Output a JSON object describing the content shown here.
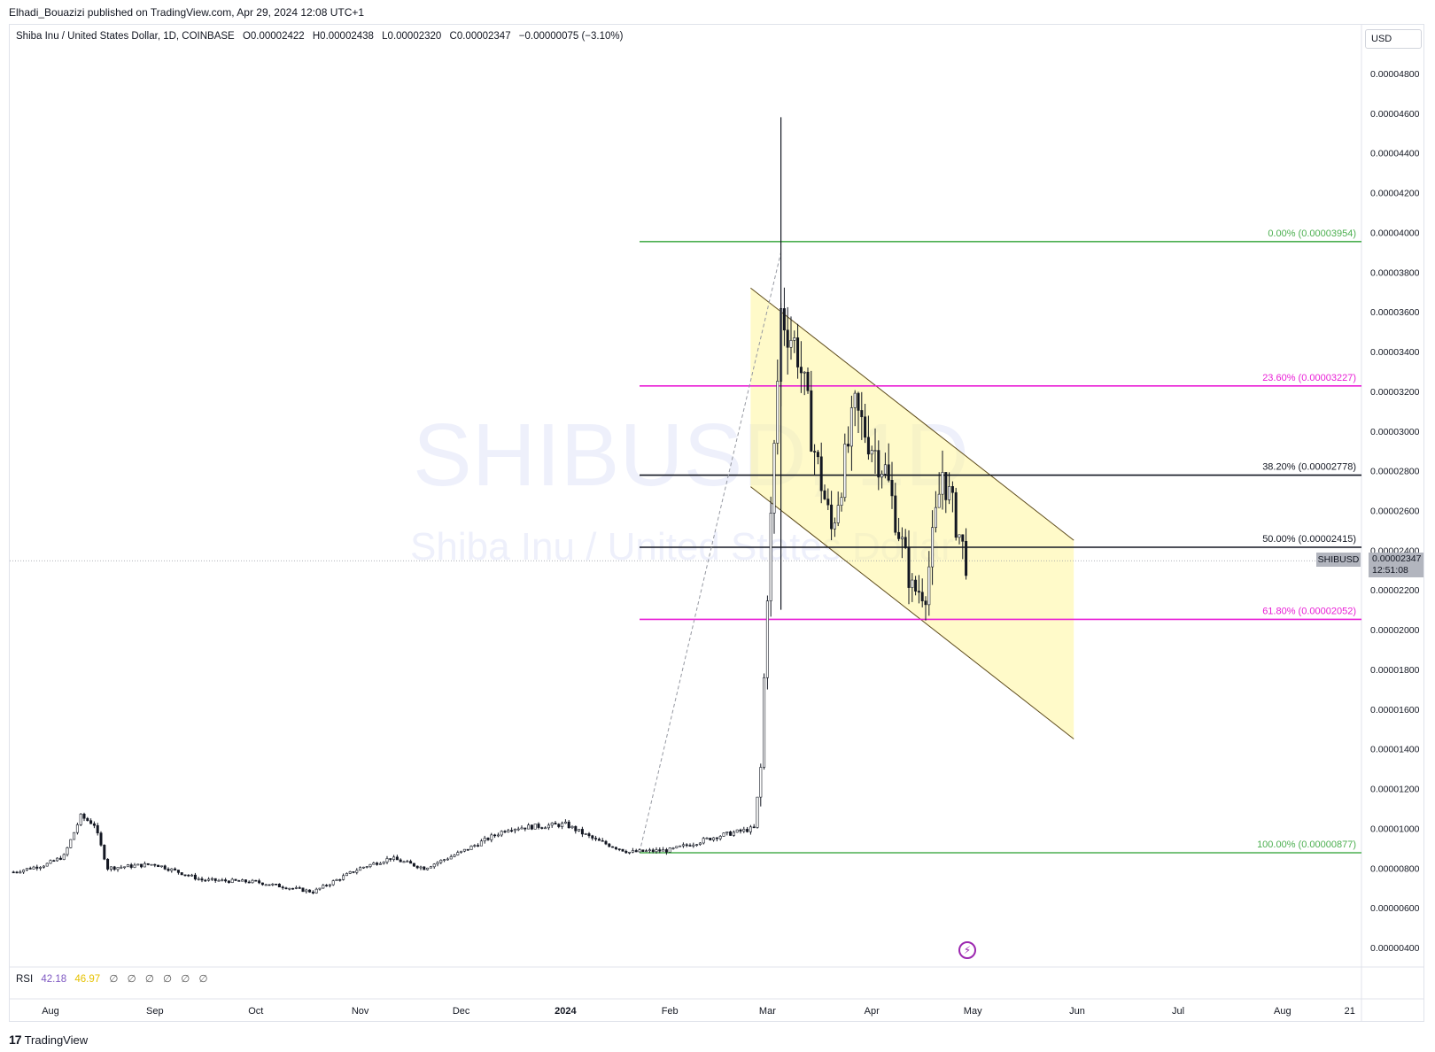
{
  "header": {
    "published_by": "Elhadi_Bouazizi published on TradingView.com, Apr 29, 2024 12:08 UTC+1"
  },
  "legend": {
    "title": "Shiba Inu / United States Dollar, 1D, COINBASE",
    "o_label": "O",
    "o_value": "0.00002422",
    "h_label": "H",
    "h_value": "0.00002438",
    "l_label": "L",
    "l_value": "0.00002320",
    "c_label": "C",
    "c_value": "0.00002347",
    "change": "−0.00000075 (−3.10%)"
  },
  "watermark": {
    "symbol": "SHIBUSD",
    "interval": "1D",
    "name": "Shiba Inu / United States Dollar"
  },
  "currency_button": "USD",
  "price_tag": {
    "symbol": "SHIBUSD",
    "price": "0.00002347",
    "countdown": "12:51:08"
  },
  "rsi": {
    "label": "RSI",
    "value1": "42.18",
    "value2": "46.97",
    "na_marks": [
      "∅",
      "∅",
      "∅",
      "∅",
      "∅",
      "∅"
    ]
  },
  "branding": {
    "logo_text": "TradingView",
    "logo_mark": "17"
  },
  "colors": {
    "candle": "#131722",
    "fib_green": "#4caf50",
    "fib_magenta": "#e91ed6",
    "fib_black": "#131722",
    "channel_fill": "#fff59d",
    "dashed": "#9598a1"
  },
  "chart_data": {
    "type": "candlestick",
    "symbol": "SHIBUSD",
    "y_axis": {
      "ticks": [
        "0.00004800",
        "0.00004600",
        "0.00004400",
        "0.00004200",
        "0.00004000",
        "0.00003800",
        "0.00003600",
        "0.00003400",
        "0.00003200",
        "0.00003000",
        "0.00002800",
        "0.00002600",
        "0.00002400",
        "0.00002200",
        "0.00002000",
        "0.00001800",
        "0.00001600",
        "0.00001400",
        "0.00001200",
        "0.00001000",
        "0.00000800",
        "0.00000600",
        "0.00000400"
      ],
      "tick_values": [
        4.8e-05,
        4.6e-05,
        4.4e-05,
        4.2e-05,
        4e-05,
        3.8e-05,
        3.6e-05,
        3.4e-05,
        3.2e-05,
        3e-05,
        2.8e-05,
        2.6e-05,
        2.4e-05,
        2.2e-05,
        2e-05,
        1.8e-05,
        1.6e-05,
        1.4e-05,
        1.2e-05,
        1e-05,
        8e-06,
        6e-06,
        4e-06
      ]
    },
    "x_axis": {
      "ticks": [
        "Aug",
        "Sep",
        "Oct",
        "Nov",
        "Dec",
        "2024",
        "Feb",
        "Mar",
        "Apr",
        "May",
        "Jun",
        "Jul",
        "Aug",
        "21"
      ],
      "tick_dates": [
        "2023-08-01",
        "2023-09-01",
        "2023-10-01",
        "2023-11-01",
        "2023-12-01",
        "2024-01-01",
        "2024-02-01",
        "2024-03-01",
        "2024-04-01",
        "2024-05-01",
        "2024-06-01",
        "2024-07-01",
        "2024-08-01",
        "2024-08-21"
      ]
    },
    "series": [
      {
        "type": "candlestick",
        "points": [
          {
            "date": "2023-07-21",
            "close": 7.8e-06
          },
          {
            "date": "2023-07-31",
            "close": 8.2e-06
          },
          {
            "date": "2023-08-05",
            "close": 8.6e-06
          },
          {
            "date": "2023-08-10",
            "close": 1.06e-05
          },
          {
            "date": "2023-08-14",
            "close": 1.02e-05
          },
          {
            "date": "2023-08-18",
            "close": 8e-06
          },
          {
            "date": "2023-09-01",
            "close": 8.2e-06
          },
          {
            "date": "2023-09-15",
            "close": 7.4e-06
          },
          {
            "date": "2023-10-01",
            "close": 7.3e-06
          },
          {
            "date": "2023-10-18",
            "close": 6.8e-06
          },
          {
            "date": "2023-11-01",
            "close": 8e-06
          },
          {
            "date": "2023-11-10",
            "close": 8.5e-06
          },
          {
            "date": "2023-11-20",
            "close": 8e-06
          },
          {
            "date": "2023-12-01",
            "close": 8.8e-06
          },
          {
            "date": "2023-12-15",
            "close": 1e-05
          },
          {
            "date": "2024-01-01",
            "close": 1.02e-05
          },
          {
            "date": "2024-01-10",
            "close": 9.4e-06
          },
          {
            "date": "2024-01-20",
            "close": 8.8e-06
          },
          {
            "date": "2024-02-01",
            "close": 8.9e-06
          },
          {
            "date": "2024-02-15",
            "close": 9.6e-06
          },
          {
            "date": "2024-02-26",
            "close": 1e-05
          },
          {
            "date": "2024-02-28",
            "close": 1.3e-05
          },
          {
            "date": "2024-03-01",
            "close": 2.2e-05
          },
          {
            "date": "2024-03-05",
            "close": 3.6e-05
          },
          {
            "date": "2024-03-10",
            "close": 3.4e-05
          },
          {
            "date": "2024-03-15",
            "close": 2.9e-05
          },
          {
            "date": "2024-03-20",
            "close": 2.5e-05
          },
          {
            "date": "2024-03-27",
            "close": 3.1e-05
          },
          {
            "date": "2024-04-05",
            "close": 2.8e-05
          },
          {
            "date": "2024-04-13",
            "close": 2.2e-05
          },
          {
            "date": "2024-04-17",
            "close": 2.2e-05
          },
          {
            "date": "2024-04-22",
            "close": 2.8e-05
          },
          {
            "date": "2024-04-29",
            "close": 2.347e-05
          }
        ]
      }
    ],
    "fibonacci": [
      {
        "label": "0.00% (0.00003954)",
        "value": 3.954e-05,
        "color": "#4caf50"
      },
      {
        "label": "23.60% (0.00003227)",
        "value": 3.227e-05,
        "color": "#e91ed6"
      },
      {
        "label": "38.20% (0.00002778)",
        "value": 2.778e-05,
        "color": "#131722"
      },
      {
        "label": "50.00% (0.00002415)",
        "value": 2.415e-05,
        "color": "#131722"
      },
      {
        "label": "61.80% (0.00002052)",
        "value": 2.052e-05,
        "color": "#e91ed6"
      },
      {
        "label": "100.00% (0.00000877)",
        "value": 8.77e-06,
        "color": "#4caf50"
      }
    ],
    "fib_start_date": "2024-01-23",
    "channel": {
      "upper": [
        {
          "date": "2024-02-25",
          "value": 3.72e-05
        },
        {
          "date": "2024-05-31",
          "value": 2.45e-05
        }
      ],
      "lower": [
        {
          "date": "2024-02-25",
          "value": 2.72e-05
        },
        {
          "date": "2024-05-31",
          "value": 1.45e-05
        }
      ]
    },
    "trend_dashed": [
      {
        "date": "2024-01-23",
        "value": 8.8e-06
      },
      {
        "date": "2024-03-05",
        "value": 3.9e-05
      }
    ],
    "last_price": 2.347e-05
  }
}
